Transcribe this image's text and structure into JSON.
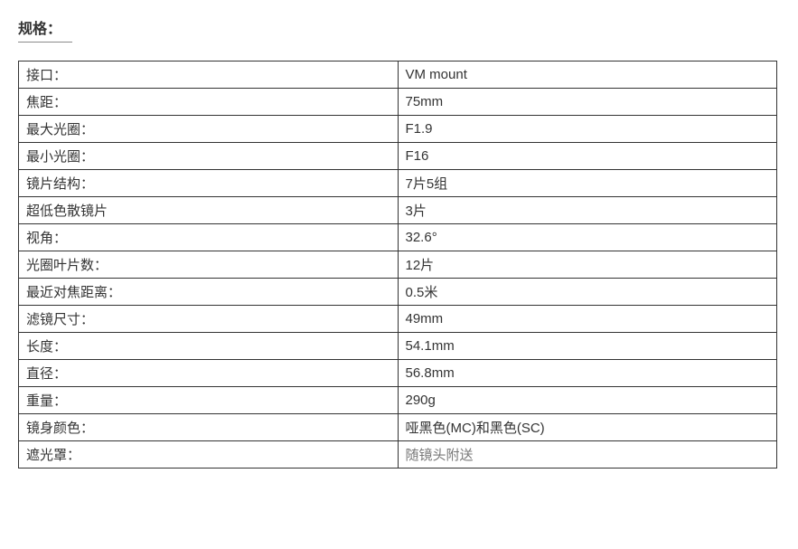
{
  "title": "规格：",
  "spec": {
    "columns": [
      "label",
      "value"
    ],
    "col_widths": [
      "50%",
      "50%"
    ],
    "border_color": "#333333",
    "font_size": 15,
    "rows": [
      {
        "label": " 接口：",
        "value": "VM mount"
      },
      {
        "label": "焦距：",
        "value": "75mm"
      },
      {
        "label": "最大光圈：",
        "value": "F1.9"
      },
      {
        "label": "最小光圈：",
        "value": "F16"
      },
      {
        "label": "镜片结构：",
        "value": "7片5组"
      },
      {
        "label": "超低色散镜片",
        "value": "3片"
      },
      {
        "label": "视角：",
        "value": "32.6°"
      },
      {
        "label": "光圈叶片数：",
        "value": "12片"
      },
      {
        "label": "最近对焦距离：",
        "value": "0.5米"
      },
      {
        "label": "滤镜尺寸：",
        "value": "49mm"
      },
      {
        "label": "长度：",
        "value": "54.1mm"
      },
      {
        "label": "直径：",
        "value": "56.8mm"
      },
      {
        "label": "重量：",
        "value": "290g"
      },
      {
        "label": "镜身颜色：",
        "value": "哑黑色(MC)和黑色(SC)"
      },
      {
        "label": "遮光罩：",
        "value": "随镜头附送",
        "value_muted": true
      }
    ]
  }
}
